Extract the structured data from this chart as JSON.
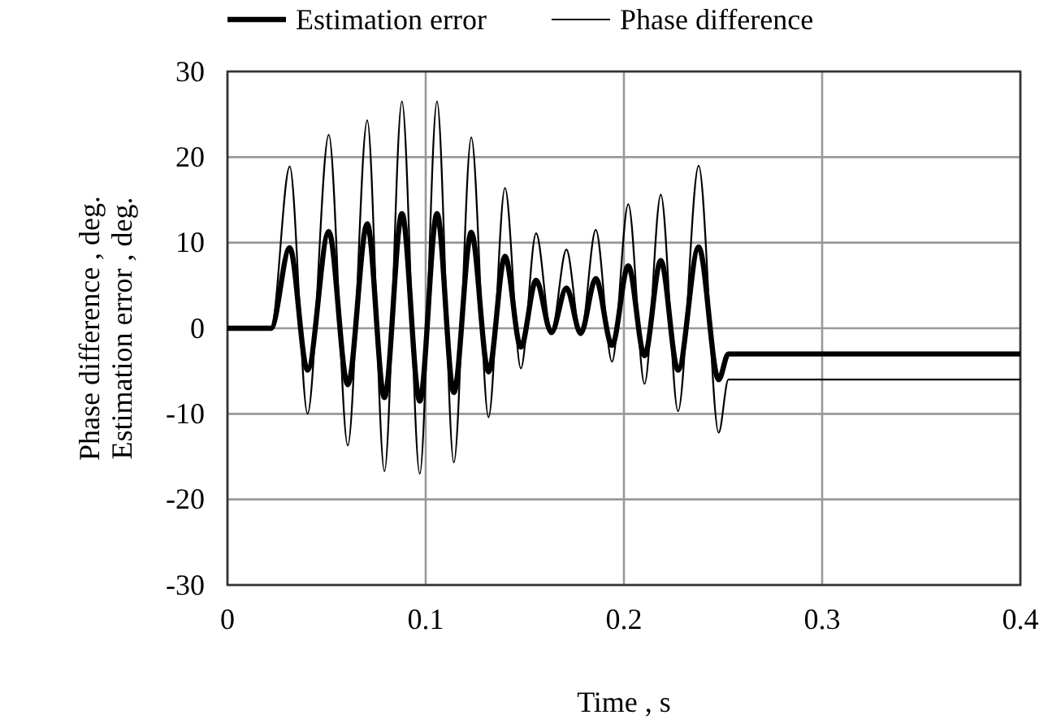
{
  "chart_data": {
    "type": "line",
    "xlabel": "Time , s",
    "ylabel": "Phase difference , deg.\nEstimation error , deg.",
    "xlim": [
      0,
      0.4
    ],
    "xticks": [
      0,
      0.1,
      0.2,
      0.3,
      0.4
    ],
    "ylim": [
      -30,
      30
    ],
    "yticks": [
      -30,
      -20,
      -10,
      0,
      10,
      20,
      30
    ],
    "grid": true,
    "legend": "top",
    "marker": "none",
    "line_style": "solid",
    "series": [
      {
        "name": "Estimation error",
        "color": "#000000",
        "x": [
          0,
          0.022,
          0.0314,
          0.0404,
          0.0511,
          0.0607,
          0.0705,
          0.0792,
          0.088,
          0.097,
          0.1057,
          0.1142,
          0.123,
          0.1317,
          0.14,
          0.148,
          0.1557,
          0.1634,
          0.171,
          0.1782,
          0.1858,
          0.194,
          0.2022,
          0.2104,
          0.2186,
          0.2273,
          0.2377,
          0.2478,
          0.2527,
          0.26,
          0.4
        ],
        "values": [
          0,
          0,
          9.4,
          -4.9,
          11.3,
          -6.6,
          12.2,
          -8.1,
          13.4,
          -8.5,
          13.4,
          -7.5,
          11.2,
          -5.1,
          8.4,
          -2.2,
          5.6,
          -0.5,
          4.7,
          -0.6,
          5.8,
          -2,
          7.3,
          -3.2,
          7.9,
          -4.9,
          9.5,
          -6,
          -3,
          -3,
          -3
        ]
      },
      {
        "name": "Phase difference",
        "color": "#000000",
        "x": [
          0,
          0.022,
          0.0314,
          0.0404,
          0.0511,
          0.0607,
          0.0705,
          0.0792,
          0.088,
          0.097,
          0.1057,
          0.1142,
          0.123,
          0.1317,
          0.14,
          0.148,
          0.1557,
          0.1634,
          0.171,
          0.1782,
          0.1858,
          0.194,
          0.2022,
          0.2104,
          0.2186,
          0.2273,
          0.2377,
          0.2478,
          0.2527,
          0.26,
          0.4
        ],
        "values": [
          0,
          0,
          18.9,
          -10,
          22.6,
          -13.7,
          24.3,
          -16.7,
          26.5,
          -17,
          26.5,
          -15.7,
          22.3,
          -10.4,
          16.4,
          -4.7,
          11.1,
          -0.5,
          9.2,
          -0.8,
          11.5,
          -3.9,
          14.5,
          -6.5,
          15.6,
          -9.7,
          19,
          -12.2,
          -6,
          -6,
          -6
        ]
      }
    ]
  }
}
